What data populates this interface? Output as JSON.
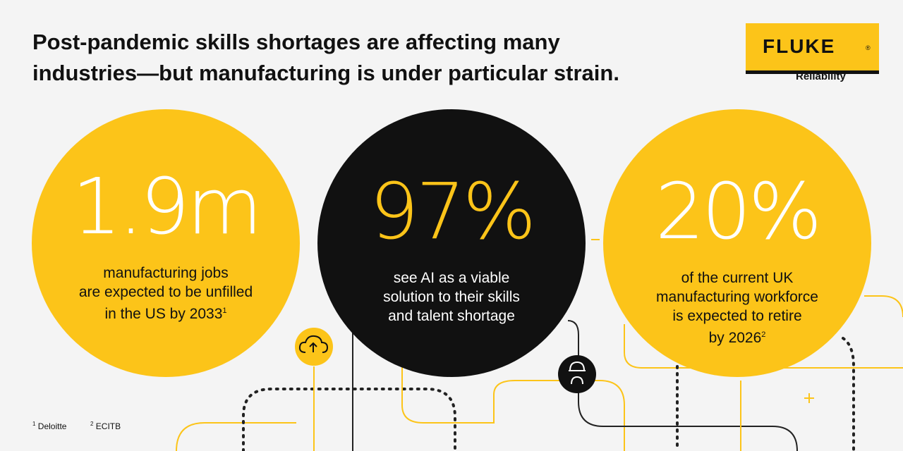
{
  "header": {
    "title_lines": [
      "Post-pandemic skills shortages are affecting many",
      "industries—but manufacturing is under particular strain."
    ]
  },
  "logo": {
    "brand": "FLUKE",
    "mark": "®",
    "tagline": "Reliability"
  },
  "stats": [
    {
      "value": "1.9m",
      "lines": [
        "manufacturing jobs",
        "are expected to be unfilled",
        "in the US by 2033"
      ],
      "note": "1"
    },
    {
      "value": "97%",
      "lines": [
        "see AI as a viable",
        "solution to their skills",
        "and talent shortage"
      ]
    },
    {
      "value": "20%",
      "lines": [
        "of the current UK",
        "manufacturing workforce",
        "is expected to retire",
        "by 2026"
      ],
      "note": "2"
    }
  ],
  "footnotes": [
    {
      "mark": "1",
      "text": "Deloitte"
    },
    {
      "mark": "2",
      "text": "ECITB"
    }
  ]
}
